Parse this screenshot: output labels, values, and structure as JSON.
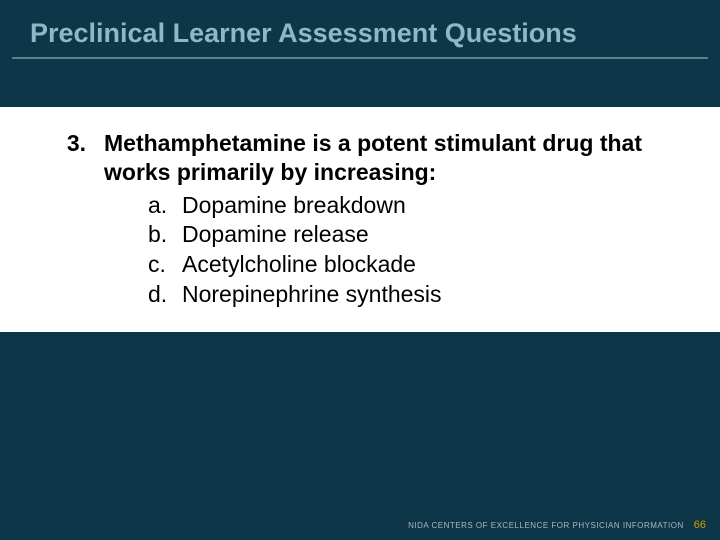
{
  "slide": {
    "title": "Preclinical Learner Assessment Questions",
    "background_color": "#0d3648",
    "title_color": "#8fb8c4",
    "title_fontsize": 27,
    "underline_color": "#5a8090",
    "content_background": "#ffffff",
    "question": {
      "number": "3.",
      "stem": "Methamphetamine is a potent stimulant drug that works primarily by increasing:",
      "stem_fontsize": 23,
      "stem_fontweight": "bold",
      "choices": [
        {
          "letter": "a.",
          "text": "Dopamine breakdown"
        },
        {
          "letter": "b.",
          "text": "Dopamine release"
        },
        {
          "letter": "c.",
          "text": "Acetylcholine blockade"
        },
        {
          "letter": "d.",
          "text": "Norepinephrine synthesis"
        }
      ],
      "choice_fontsize": 23
    },
    "footer": {
      "org_text": "NIDA CENTERS OF EXCELLENCE FOR PHYSICIAN INFORMATION",
      "page_number": "66",
      "org_color": "#a8b8c0",
      "page_color": "#c8a000"
    }
  }
}
